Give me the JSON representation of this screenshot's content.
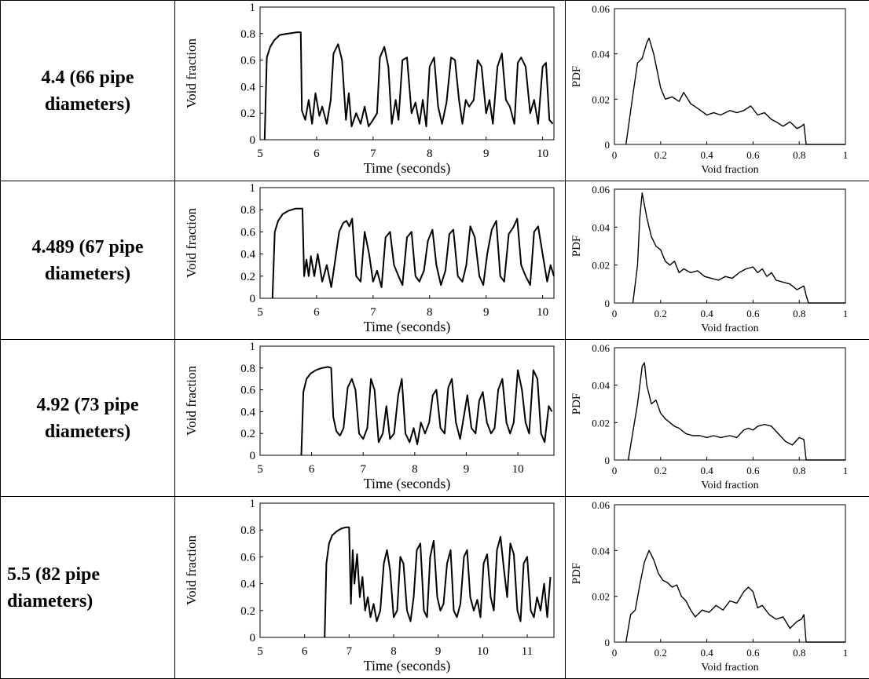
{
  "rows": [
    {
      "label": "4.4 (66 pipe diameters)"
    },
    {
      "label": "4.489 (67 pipe diameters)"
    },
    {
      "label": "4.92 (73 pipe diameters)"
    },
    {
      "label": "5.5 (82 pipe diameters)"
    }
  ],
  "chart_data": [
    {
      "type": "line",
      "xlabel": "Time (seconds)",
      "ylabel": "Void fraction",
      "xlim": [
        5,
        10.2
      ],
      "ylim": [
        0,
        1
      ],
      "xticks": [
        5,
        6,
        7,
        8,
        9,
        10
      ],
      "yticks": [
        0,
        0.2,
        0.4,
        0.6,
        0.8,
        1
      ],
      "grid": false,
      "series": [
        {
          "x": [
            5.08,
            5.12,
            5.18,
            5.25,
            5.35,
            5.5,
            5.65,
            5.72,
            5.74,
            5.8,
            5.86,
            5.92,
            5.98,
            6.05,
            6.1,
            6.18,
            6.25,
            6.3,
            6.38,
            6.45,
            6.52,
            6.57,
            6.62,
            6.7,
            6.78,
            6.85,
            6.92,
            7.0,
            7.07,
            7.12,
            7.2,
            7.27,
            7.33,
            7.4,
            7.45,
            7.52,
            7.6,
            7.68,
            7.75,
            7.82,
            7.88,
            7.94,
            8.0,
            8.08,
            8.15,
            8.22,
            8.3,
            8.38,
            8.45,
            8.52,
            8.58,
            8.64,
            8.7,
            8.78,
            8.85,
            8.92,
            9.0,
            9.06,
            9.12,
            9.2,
            9.28,
            9.35,
            9.42,
            9.5,
            9.56,
            9.62,
            9.7,
            9.78,
            9.85,
            9.92,
            10.0,
            10.06,
            10.12,
            10.18
          ],
          "y": [
            0,
            0.62,
            0.7,
            0.75,
            0.79,
            0.8,
            0.81,
            0.81,
            0.22,
            0.15,
            0.3,
            0.12,
            0.35,
            0.18,
            0.25,
            0.12,
            0.3,
            0.65,
            0.72,
            0.6,
            0.15,
            0.35,
            0.1,
            0.2,
            0.12,
            0.25,
            0.1,
            0.15,
            0.2,
            0.62,
            0.7,
            0.55,
            0.12,
            0.3,
            0.15,
            0.6,
            0.62,
            0.2,
            0.28,
            0.12,
            0.3,
            0.1,
            0.55,
            0.62,
            0.25,
            0.12,
            0.28,
            0.62,
            0.6,
            0.3,
            0.12,
            0.3,
            0.25,
            0.3,
            0.6,
            0.55,
            0.2,
            0.3,
            0.12,
            0.55,
            0.65,
            0.3,
            0.25,
            0.12,
            0.58,
            0.62,
            0.55,
            0.2,
            0.3,
            0.12,
            0.55,
            0.58,
            0.15,
            0.12
          ]
        }
      ]
    },
    {
      "type": "line",
      "xlabel": "Void fraction",
      "ylabel": "PDF",
      "xlim": [
        0,
        1
      ],
      "ylim": [
        0,
        0.06
      ],
      "xticks": [
        0,
        0.2,
        0.4,
        0.6,
        0.8,
        1
      ],
      "yticks": [
        0,
        0.02,
        0.04,
        0.06
      ],
      "grid": false,
      "series": [
        {
          "x": [
            0.05,
            0.08,
            0.1,
            0.12,
            0.14,
            0.15,
            0.17,
            0.2,
            0.22,
            0.25,
            0.28,
            0.3,
            0.33,
            0.36,
            0.4,
            0.43,
            0.46,
            0.5,
            0.53,
            0.56,
            0.59,
            0.62,
            0.65,
            0.68,
            0.7,
            0.73,
            0.76,
            0.79,
            0.81,
            0.82,
            0.83,
            1.0
          ],
          "y": [
            0,
            0.022,
            0.036,
            0.038,
            0.045,
            0.047,
            0.04,
            0.025,
            0.02,
            0.021,
            0.019,
            0.023,
            0.018,
            0.016,
            0.013,
            0.014,
            0.013,
            0.015,
            0.014,
            0.015,
            0.017,
            0.013,
            0.014,
            0.011,
            0.01,
            0.008,
            0.01,
            0.007,
            0.008,
            0.009,
            0,
            0
          ]
        }
      ]
    },
    {
      "type": "line",
      "xlabel": "Time (seconds)",
      "ylabel": "Void fraction",
      "xlim": [
        5,
        10.2
      ],
      "ylim": [
        0,
        1
      ],
      "xticks": [
        5,
        6,
        7,
        8,
        9,
        10
      ],
      "yticks": [
        0,
        0.2,
        0.4,
        0.6,
        0.8,
        1
      ],
      "grid": false,
      "series": [
        {
          "x": [
            5.22,
            5.26,
            5.32,
            5.4,
            5.5,
            5.62,
            5.75,
            5.78,
            5.82,
            5.86,
            5.9,
            5.96,
            6.02,
            6.1,
            6.18,
            6.26,
            6.33,
            6.4,
            6.47,
            6.53,
            6.58,
            6.63,
            6.7,
            6.78,
            6.85,
            6.93,
            7.0,
            7.07,
            7.15,
            7.22,
            7.3,
            7.37,
            7.45,
            7.52,
            7.6,
            7.68,
            7.75,
            7.82,
            7.9,
            7.97,
            8.05,
            8.12,
            8.2,
            8.28,
            8.35,
            8.42,
            8.5,
            8.58,
            8.65,
            8.72,
            8.8,
            8.88,
            8.95,
            9.02,
            9.1,
            9.18,
            9.25,
            9.32,
            9.4,
            9.48,
            9.55,
            9.62,
            9.7,
            9.78,
            9.85,
            9.92,
            10.0,
            10.08,
            10.14,
            10.2
          ],
          "y": [
            0,
            0.6,
            0.7,
            0.76,
            0.79,
            0.81,
            0.81,
            0.2,
            0.35,
            0.2,
            0.38,
            0.2,
            0.4,
            0.15,
            0.3,
            0.1,
            0.35,
            0.6,
            0.68,
            0.7,
            0.65,
            0.72,
            0.2,
            0.15,
            0.6,
            0.4,
            0.15,
            0.25,
            0.1,
            0.55,
            0.6,
            0.3,
            0.2,
            0.12,
            0.55,
            0.6,
            0.2,
            0.15,
            0.25,
            0.52,
            0.62,
            0.3,
            0.12,
            0.25,
            0.58,
            0.62,
            0.2,
            0.15,
            0.3,
            0.65,
            0.55,
            0.2,
            0.12,
            0.4,
            0.62,
            0.7,
            0.2,
            0.15,
            0.58,
            0.64,
            0.72,
            0.3,
            0.2,
            0.12,
            0.6,
            0.65,
            0.4,
            0.15,
            0.3,
            0.2
          ]
        }
      ]
    },
    {
      "type": "line",
      "xlabel": "Void fraction",
      "ylabel": "PDF",
      "xlim": [
        0,
        1
      ],
      "ylim": [
        0,
        0.06
      ],
      "xticks": [
        0,
        0.2,
        0.4,
        0.6,
        0.8,
        1
      ],
      "yticks": [
        0,
        0.02,
        0.04,
        0.06
      ],
      "grid": false,
      "series": [
        {
          "x": [
            0.08,
            0.1,
            0.11,
            0.12,
            0.14,
            0.16,
            0.18,
            0.2,
            0.22,
            0.24,
            0.26,
            0.28,
            0.3,
            0.33,
            0.36,
            0.39,
            0.42,
            0.45,
            0.48,
            0.51,
            0.54,
            0.57,
            0.6,
            0.62,
            0.64,
            0.66,
            0.68,
            0.7,
            0.73,
            0.76,
            0.79,
            0.82,
            0.83,
            0.84,
            1.0
          ],
          "y": [
            0,
            0.02,
            0.045,
            0.058,
            0.045,
            0.035,
            0.03,
            0.028,
            0.022,
            0.02,
            0.022,
            0.016,
            0.018,
            0.016,
            0.017,
            0.014,
            0.013,
            0.012,
            0.014,
            0.013,
            0.016,
            0.018,
            0.019,
            0.016,
            0.018,
            0.014,
            0.016,
            0.012,
            0.011,
            0.01,
            0.007,
            0.009,
            0.004,
            0,
            0
          ]
        }
      ]
    },
    {
      "type": "line",
      "xlabel": "Time (seconds)",
      "ylabel": "Void fraction",
      "xlim": [
        5,
        10.7
      ],
      "ylim": [
        0,
        1
      ],
      "xticks": [
        5,
        6,
        7,
        8,
        9,
        10
      ],
      "yticks": [
        0,
        0.2,
        0.4,
        0.6,
        0.8,
        1
      ],
      "grid": false,
      "series": [
        {
          "x": [
            5.8,
            5.84,
            5.9,
            5.98,
            6.08,
            6.2,
            6.32,
            6.38,
            6.42,
            6.48,
            6.55,
            6.62,
            6.7,
            6.78,
            6.85,
            6.92,
            7.0,
            7.08,
            7.15,
            7.22,
            7.3,
            7.38,
            7.45,
            7.52,
            7.6,
            7.68,
            7.75,
            7.82,
            7.9,
            7.98,
            8.05,
            8.12,
            8.2,
            8.28,
            8.35,
            8.42,
            8.5,
            8.58,
            8.65,
            8.72,
            8.8,
            8.88,
            8.95,
            9.02,
            9.1,
            9.18,
            9.25,
            9.32,
            9.4,
            9.48,
            9.55,
            9.62,
            9.7,
            9.78,
            9.85,
            9.92,
            10.0,
            10.08,
            10.15,
            10.22,
            10.3,
            10.38,
            10.45,
            10.52,
            10.6,
            10.66
          ],
          "y": [
            0,
            0.58,
            0.7,
            0.75,
            0.78,
            0.8,
            0.81,
            0.8,
            0.35,
            0.22,
            0.18,
            0.25,
            0.62,
            0.7,
            0.6,
            0.2,
            0.15,
            0.25,
            0.7,
            0.6,
            0.12,
            0.2,
            0.45,
            0.15,
            0.2,
            0.55,
            0.7,
            0.2,
            0.12,
            0.25,
            0.1,
            0.3,
            0.2,
            0.3,
            0.55,
            0.6,
            0.25,
            0.2,
            0.62,
            0.7,
            0.3,
            0.15,
            0.35,
            0.55,
            0.25,
            0.2,
            0.5,
            0.58,
            0.3,
            0.2,
            0.25,
            0.6,
            0.7,
            0.3,
            0.2,
            0.3,
            0.78,
            0.6,
            0.3,
            0.2,
            0.78,
            0.7,
            0.2,
            0.12,
            0.45,
            0.4
          ]
        }
      ]
    },
    {
      "type": "line",
      "xlabel": "Void fraction",
      "ylabel": "PDF",
      "xlim": [
        0,
        1
      ],
      "ylim": [
        0,
        0.06
      ],
      "xticks": [
        0,
        0.2,
        0.4,
        0.6,
        0.8,
        1
      ],
      "yticks": [
        0,
        0.02,
        0.04,
        0.06
      ],
      "grid": false,
      "series": [
        {
          "x": [
            0.06,
            0.08,
            0.1,
            0.12,
            0.13,
            0.14,
            0.16,
            0.18,
            0.2,
            0.22,
            0.24,
            0.26,
            0.28,
            0.31,
            0.34,
            0.37,
            0.4,
            0.43,
            0.46,
            0.5,
            0.53,
            0.56,
            0.58,
            0.6,
            0.62,
            0.65,
            0.68,
            0.71,
            0.74,
            0.77,
            0.8,
            0.82,
            0.83,
            1.0
          ],
          "y": [
            0,
            0.015,
            0.03,
            0.05,
            0.052,
            0.04,
            0.03,
            0.032,
            0.025,
            0.022,
            0.02,
            0.018,
            0.017,
            0.014,
            0.013,
            0.013,
            0.012,
            0.013,
            0.012,
            0.013,
            0.012,
            0.016,
            0.017,
            0.016,
            0.018,
            0.019,
            0.018,
            0.014,
            0.01,
            0.008,
            0.012,
            0.011,
            0,
            0
          ]
        }
      ]
    },
    {
      "type": "line",
      "xlabel": "Time (seconds)",
      "ylabel": "Void fraction",
      "xlim": [
        5,
        11.6
      ],
      "ylim": [
        0,
        1
      ],
      "xticks": [
        5,
        6,
        7,
        8,
        9,
        10,
        11
      ],
      "yticks": [
        0,
        0.2,
        0.4,
        0.6,
        0.8,
        1
      ],
      "grid": false,
      "series": [
        {
          "x": [
            6.45,
            6.49,
            6.55,
            6.62,
            6.72,
            6.82,
            6.92,
            7.0,
            7.04,
            7.08,
            7.12,
            7.18,
            7.24,
            7.3,
            7.36,
            7.42,
            7.48,
            7.55,
            7.62,
            7.7,
            7.78,
            7.85,
            7.92,
            8.0,
            8.08,
            8.15,
            8.22,
            8.3,
            8.38,
            8.45,
            8.52,
            8.6,
            8.68,
            8.75,
            8.82,
            8.9,
            8.98,
            9.05,
            9.12,
            9.2,
            9.28,
            9.35,
            9.42,
            9.5,
            9.58,
            9.65,
            9.72,
            9.8,
            9.88,
            9.95,
            10.02,
            10.1,
            10.18,
            10.25,
            10.32,
            10.4,
            10.48,
            10.55,
            10.62,
            10.7,
            10.78,
            10.85,
            10.92,
            11.0,
            11.08,
            11.15,
            11.22,
            11.3,
            11.38,
            11.45,
            11.52
          ],
          "y": [
            0,
            0.55,
            0.7,
            0.76,
            0.79,
            0.81,
            0.82,
            0.82,
            0.25,
            0.65,
            0.4,
            0.62,
            0.3,
            0.45,
            0.2,
            0.3,
            0.15,
            0.25,
            0.12,
            0.2,
            0.55,
            0.65,
            0.5,
            0.15,
            0.2,
            0.6,
            0.55,
            0.2,
            0.12,
            0.3,
            0.65,
            0.7,
            0.2,
            0.15,
            0.6,
            0.72,
            0.3,
            0.2,
            0.25,
            0.55,
            0.65,
            0.2,
            0.15,
            0.25,
            0.6,
            0.65,
            0.3,
            0.2,
            0.28,
            0.15,
            0.55,
            0.62,
            0.3,
            0.2,
            0.65,
            0.75,
            0.5,
            0.3,
            0.7,
            0.62,
            0.2,
            0.12,
            0.55,
            0.6,
            0.2,
            0.15,
            0.3,
            0.2,
            0.4,
            0.15,
            0.45
          ]
        }
      ]
    },
    {
      "type": "line",
      "xlabel": "Void fraction",
      "ylabel": "PDF",
      "xlim": [
        0,
        1
      ],
      "ylim": [
        0,
        0.06
      ],
      "xticks": [
        0,
        0.2,
        0.4,
        0.6,
        0.8,
        1
      ],
      "yticks": [
        0,
        0.02,
        0.04,
        0.06
      ],
      "grid": false,
      "series": [
        {
          "x": [
            0.05,
            0.07,
            0.09,
            0.11,
            0.13,
            0.15,
            0.17,
            0.19,
            0.21,
            0.23,
            0.25,
            0.27,
            0.29,
            0.31,
            0.33,
            0.35,
            0.38,
            0.41,
            0.44,
            0.47,
            0.5,
            0.53,
            0.56,
            0.58,
            0.6,
            0.62,
            0.64,
            0.67,
            0.7,
            0.73,
            0.76,
            0.79,
            0.81,
            0.82,
            0.83,
            1.0
          ],
          "y": [
            0,
            0.012,
            0.014,
            0.025,
            0.035,
            0.04,
            0.036,
            0.03,
            0.027,
            0.026,
            0.024,
            0.025,
            0.02,
            0.018,
            0.014,
            0.011,
            0.014,
            0.013,
            0.016,
            0.014,
            0.018,
            0.017,
            0.022,
            0.024,
            0.022,
            0.015,
            0.016,
            0.012,
            0.01,
            0.011,
            0.006,
            0.009,
            0.01,
            0.012,
            0,
            0
          ]
        }
      ]
    }
  ]
}
